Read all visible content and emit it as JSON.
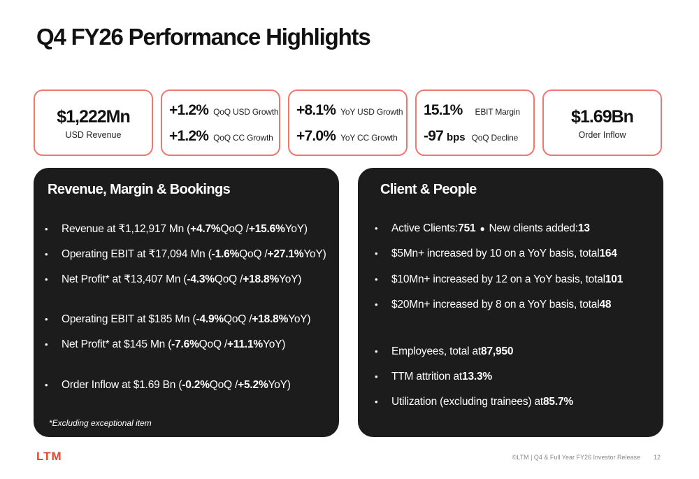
{
  "title": "Q4 FY26 Performance Highlights",
  "kpis": {
    "revenue": {
      "value": "$1,222Mn",
      "label": "USD Revenue"
    },
    "growth": {
      "row1_value": "+1.2%",
      "row1_label": "QoQ USD Growth",
      "row2_value": "+1.2%",
      "row2_label": "QoQ CC Growth"
    },
    "yoy": {
      "row1_value": "+8.1%",
      "row1_label": "YoY USD Growth",
      "row2_value": "+7.0%",
      "row2_label": "YoY CC Growth"
    },
    "ebit": {
      "row1_value": "15.1%",
      "row1_label": "EBIT Margin",
      "row2_value": "-97",
      "row2_unit": "bps",
      "row2_label": "QoQ Decline"
    },
    "order": {
      "value": "$1.69Bn",
      "label": "Order Inflow"
    }
  },
  "left_panel": {
    "title": "Revenue, Margin & Bookings",
    "bullets": [
      {
        "pre": "Revenue at ₹1,12,917 Mn (",
        "qoq": "+4.7%",
        "mid": " QoQ / ",
        "yoy": "+15.6%",
        "post": " YoY)"
      },
      {
        "pre": "Operating EBIT at ₹17,094 Mn (",
        "qoq": "-1.6%",
        "mid": " QoQ / ",
        "yoy": "+27.1%",
        "post": " YoY)"
      },
      {
        "pre": "Net Profit* at ₹13,407 Mn (",
        "qoq": "-4.3%",
        "mid": " QoQ / ",
        "yoy": "+18.8%",
        "post": " YoY)"
      },
      {
        "pre": "Operating EBIT at $185 Mn (",
        "qoq": "-4.9%",
        "mid": " QoQ / ",
        "yoy": "+18.8%",
        "post": " YoY)"
      },
      {
        "pre": "Net Profit* at $145 Mn (",
        "qoq": "-7.6%",
        "mid": " QoQ / ",
        "yoy": "+11.1%",
        "post": " YoY)"
      },
      {
        "pre": "Order Inflow at $1.69 Bn (",
        "qoq": "-0.2%",
        "mid": " QoQ / ",
        "yoy": "+5.2%",
        "post": " YoY)"
      }
    ],
    "footnote": "*Excluding exceptional item"
  },
  "right_panel": {
    "title": "Client & People",
    "active_clients_label": "Active Clients: ",
    "active_clients_value": "751",
    "new_clients_label": "New clients added: ",
    "new_clients_value": "13",
    "bullets": [
      {
        "text": "$5Mn+ increased by 10 on a YoY basis, total ",
        "value": "164"
      },
      {
        "text": "$10Mn+ increased by 12 on a YoY basis, total ",
        "value": "101"
      },
      {
        "text": "$20Mn+ increased by 8 on a YoY basis, total ",
        "value": "48"
      },
      {
        "text": "Employees, total at ",
        "value": "87,950"
      },
      {
        "text": "TTM attrition at ",
        "value": "13.3%"
      },
      {
        "text": "Utilization (excluding trainees) at ",
        "value": "85.7%"
      }
    ]
  },
  "footer": {
    "logo": "LTM",
    "text": "©LTM | Q4 & Full Year FY26 Investor Release",
    "page": "12"
  },
  "colors": {
    "accent": "#e8442e",
    "card_border": "#f0776e",
    "panel_bg": "#1c1c1c"
  }
}
